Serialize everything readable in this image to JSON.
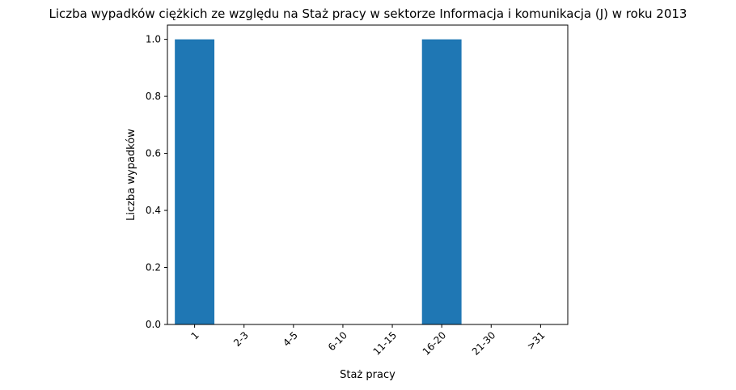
{
  "chart_data": {
    "type": "bar",
    "title": "Liczba wypadków ciężkich ze względu na Staż pracy w sektorze Informacja i komunikacja (J)   w roku 2013",
    "xlabel": "Staż pracy",
    "ylabel": "Liczba wypadków",
    "categories": [
      "1",
      "2-3",
      "4-5",
      "6-10",
      "11-15",
      "16-20",
      "21-30",
      ">31"
    ],
    "values": [
      1,
      0,
      0,
      0,
      0,
      1,
      0,
      0
    ],
    "ylim": [
      0,
      1.05
    ],
    "yticks": [
      "0.0",
      "0.2",
      "0.4",
      "0.6",
      "0.8",
      "1.0"
    ],
    "bar_color": "#1f77b4",
    "grid": false,
    "legend": false
  }
}
